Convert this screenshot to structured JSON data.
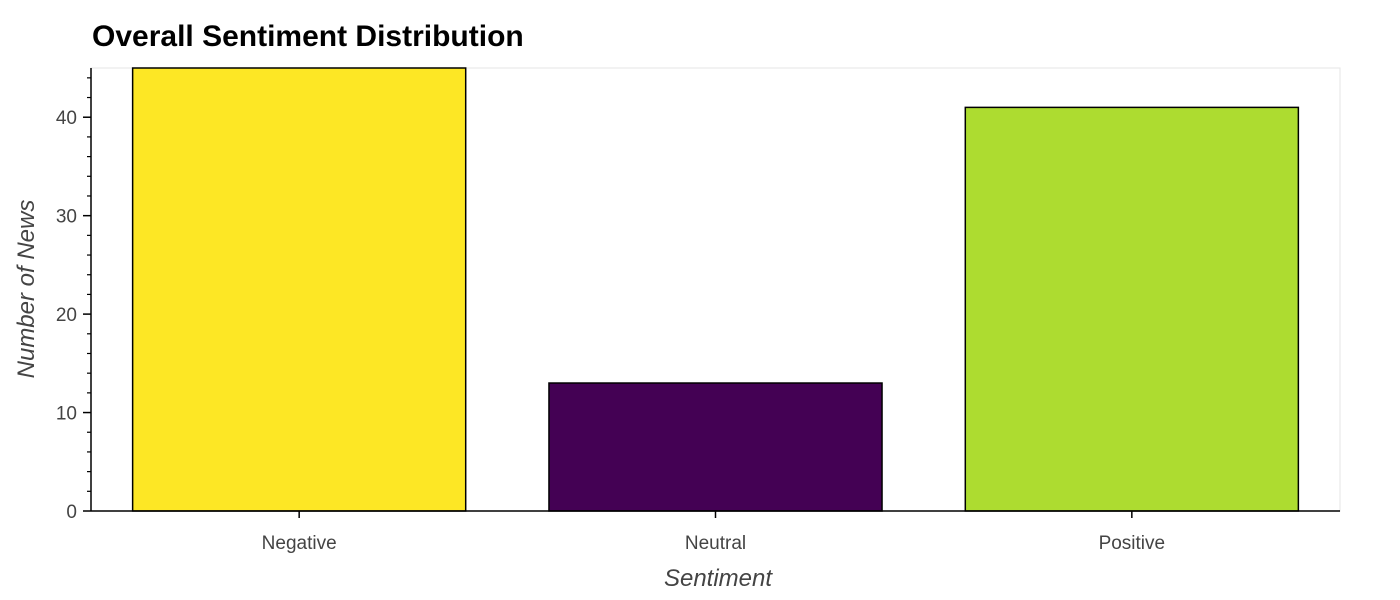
{
  "chart_data": {
    "type": "bar",
    "title": "Overall Sentiment Distribution",
    "xlabel": "Sentiment",
    "ylabel": "Number of News",
    "categories": [
      "Negative",
      "Neutral",
      "Positive"
    ],
    "values": [
      45,
      13,
      41
    ],
    "colors": [
      "#FDE725",
      "#440154",
      "#ADDC30"
    ],
    "ylim": [
      0,
      45
    ],
    "yticks": [
      0,
      10,
      20,
      30,
      40
    ],
    "grid": false,
    "legend": "none"
  }
}
